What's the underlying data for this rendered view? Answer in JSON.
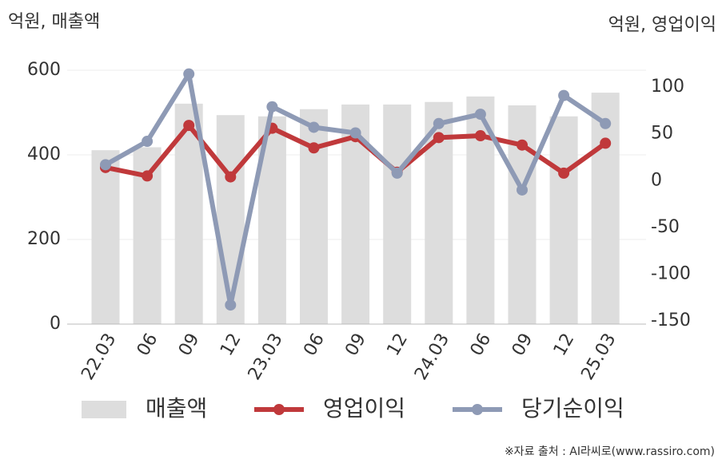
{
  "chart_data": {
    "type": "bar-line",
    "y_label": "억원, 매출액",
    "y2_label": "억원, 영업이익",
    "categories": [
      "22.03",
      "06",
      "09",
      "12",
      "23.03",
      "06",
      "09",
      "12",
      "24.03",
      "06",
      "09",
      "12",
      "25.03"
    ],
    "series": [
      {
        "name": "매출액",
        "type": "bar",
        "color": "#dddddd",
        "values": [
          411,
          418,
          521,
          494,
          491,
          508,
          519,
          519,
          525,
          538,
          517,
          491,
          547
        ]
      },
      {
        "name": "영업이익",
        "type": "line",
        "axis": "y2",
        "color": "#c0393b",
        "values": [
          14,
          5,
          59,
          4,
          56,
          35,
          47,
          9,
          46,
          48,
          38,
          8,
          40
        ]
      },
      {
        "name": "당기순이익",
        "type": "line",
        "axis": "y2",
        "color": "#8e9ab5",
        "values": [
          17,
          42,
          114,
          -133,
          79,
          57,
          51,
          8,
          61,
          71,
          -10,
          91,
          61
        ]
      }
    ],
    "ylim": [
      0,
      600
    ],
    "yticks": [
      0,
      200,
      400,
      600
    ],
    "y2lim": [
      -153.4,
      118
    ],
    "y2ticks": [
      -150,
      -100,
      -50,
      0,
      50,
      100
    ],
    "grid": true,
    "legend": "bottom",
    "source": "※자료 출처 : AI라씨로(www.rassiro.com)"
  }
}
